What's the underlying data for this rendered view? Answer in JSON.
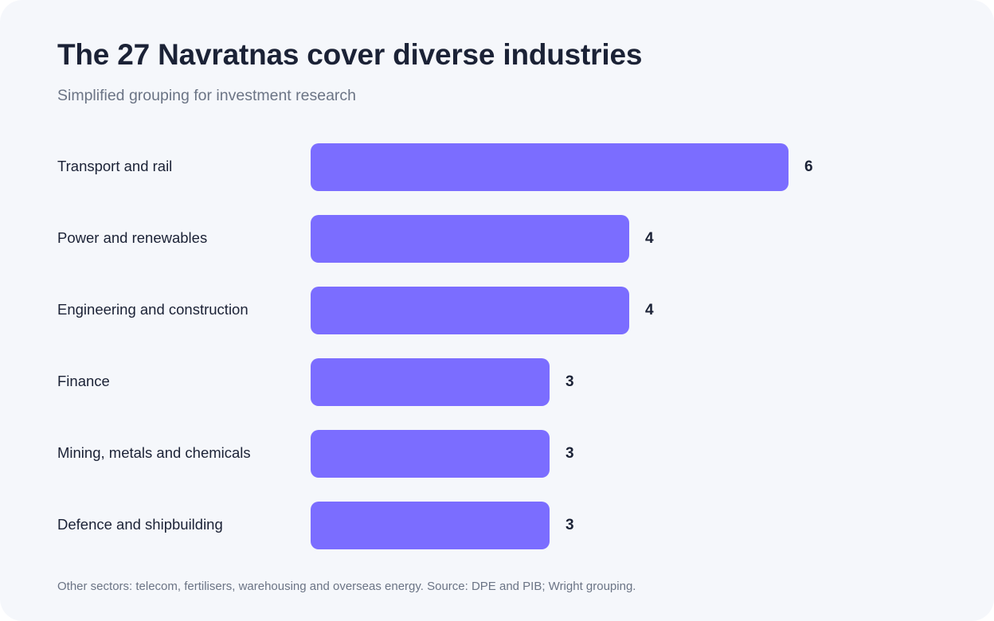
{
  "title": "The 27 Navratnas cover diverse industries",
  "subtitle": "Simplified grouping for investment research",
  "footnote": "Other sectors: telecom, fertilisers, warehousing and overseas energy. Source: DPE and PIB; Wright grouping.",
  "colors": {
    "bar": "#7b6dff",
    "background": "#f5f7fb",
    "text": "#1b2236",
    "muted": "#6b7485"
  },
  "chart_data": {
    "type": "bar",
    "orientation": "horizontal",
    "categories": [
      "Transport and rail",
      "Power and renewables",
      "Engineering and construction",
      "Finance",
      "Mining, metals and chemicals",
      "Defence and shipbuilding"
    ],
    "values": [
      6,
      4,
      4,
      3,
      3,
      3
    ],
    "title": "The 27 Navratnas cover diverse industries",
    "subtitle": "Simplified grouping for investment research",
    "xlabel": "",
    "ylabel": "",
    "xlim": [
      0,
      6
    ],
    "grid": false,
    "legend": "none",
    "data_labels": true
  }
}
